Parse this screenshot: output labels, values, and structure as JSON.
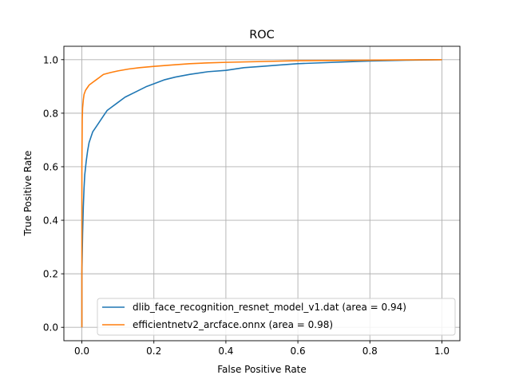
{
  "chart_data": {
    "type": "line",
    "title": "ROC",
    "xlabel": "False Positive Rate",
    "ylabel": "True Positive Rate",
    "xlim": [
      -0.05,
      1.05
    ],
    "ylim": [
      -0.05,
      1.05
    ],
    "xticks": [
      "0.0",
      "0.2",
      "0.4",
      "0.6",
      "0.8",
      "1.0"
    ],
    "yticks": [
      "0.0",
      "0.2",
      "0.4",
      "0.6",
      "0.8",
      "1.0"
    ],
    "grid": true,
    "legend_position": "lower-right",
    "series": [
      {
        "name": "dlib_face_recognition_resnet_model_v1.dat (area = 0.94)",
        "color": "#1f77b4",
        "x": [
          0.0,
          0.0,
          0.002,
          0.004,
          0.006,
          0.008,
          0.012,
          0.016,
          0.02,
          0.025,
          0.03,
          0.04,
          0.05,
          0.06,
          0.07,
          0.08,
          0.1,
          0.12,
          0.15,
          0.18,
          0.2,
          0.23,
          0.26,
          0.3,
          0.35,
          0.4,
          0.45,
          0.5,
          0.55,
          0.6,
          0.7,
          0.8,
          0.9,
          1.0
        ],
        "y": [
          0.0,
          0.2,
          0.35,
          0.45,
          0.52,
          0.57,
          0.62,
          0.66,
          0.69,
          0.71,
          0.73,
          0.75,
          0.77,
          0.79,
          0.81,
          0.82,
          0.84,
          0.86,
          0.88,
          0.9,
          0.91,
          0.925,
          0.935,
          0.945,
          0.955,
          0.96,
          0.97,
          0.975,
          0.98,
          0.985,
          0.99,
          0.995,
          0.998,
          1.0
        ]
      },
      {
        "name": "efficientnetv2_arcface.onnx (area = 0.98)",
        "color": "#ff7f0e",
        "x": [
          0.0,
          0.0,
          0.001,
          0.002,
          0.004,
          0.006,
          0.01,
          0.015,
          0.02,
          0.03,
          0.04,
          0.05,
          0.06,
          0.08,
          0.1,
          0.13,
          0.16,
          0.2,
          0.25,
          0.3,
          0.35,
          0.4,
          0.5,
          0.6,
          0.7,
          0.8,
          0.9,
          1.0
        ],
        "y": [
          0.0,
          0.6,
          0.78,
          0.82,
          0.85,
          0.87,
          0.885,
          0.895,
          0.905,
          0.915,
          0.925,
          0.935,
          0.945,
          0.952,
          0.958,
          0.965,
          0.97,
          0.975,
          0.98,
          0.985,
          0.988,
          0.99,
          0.993,
          0.996,
          0.997,
          0.998,
          0.999,
          1.0
        ]
      }
    ]
  }
}
